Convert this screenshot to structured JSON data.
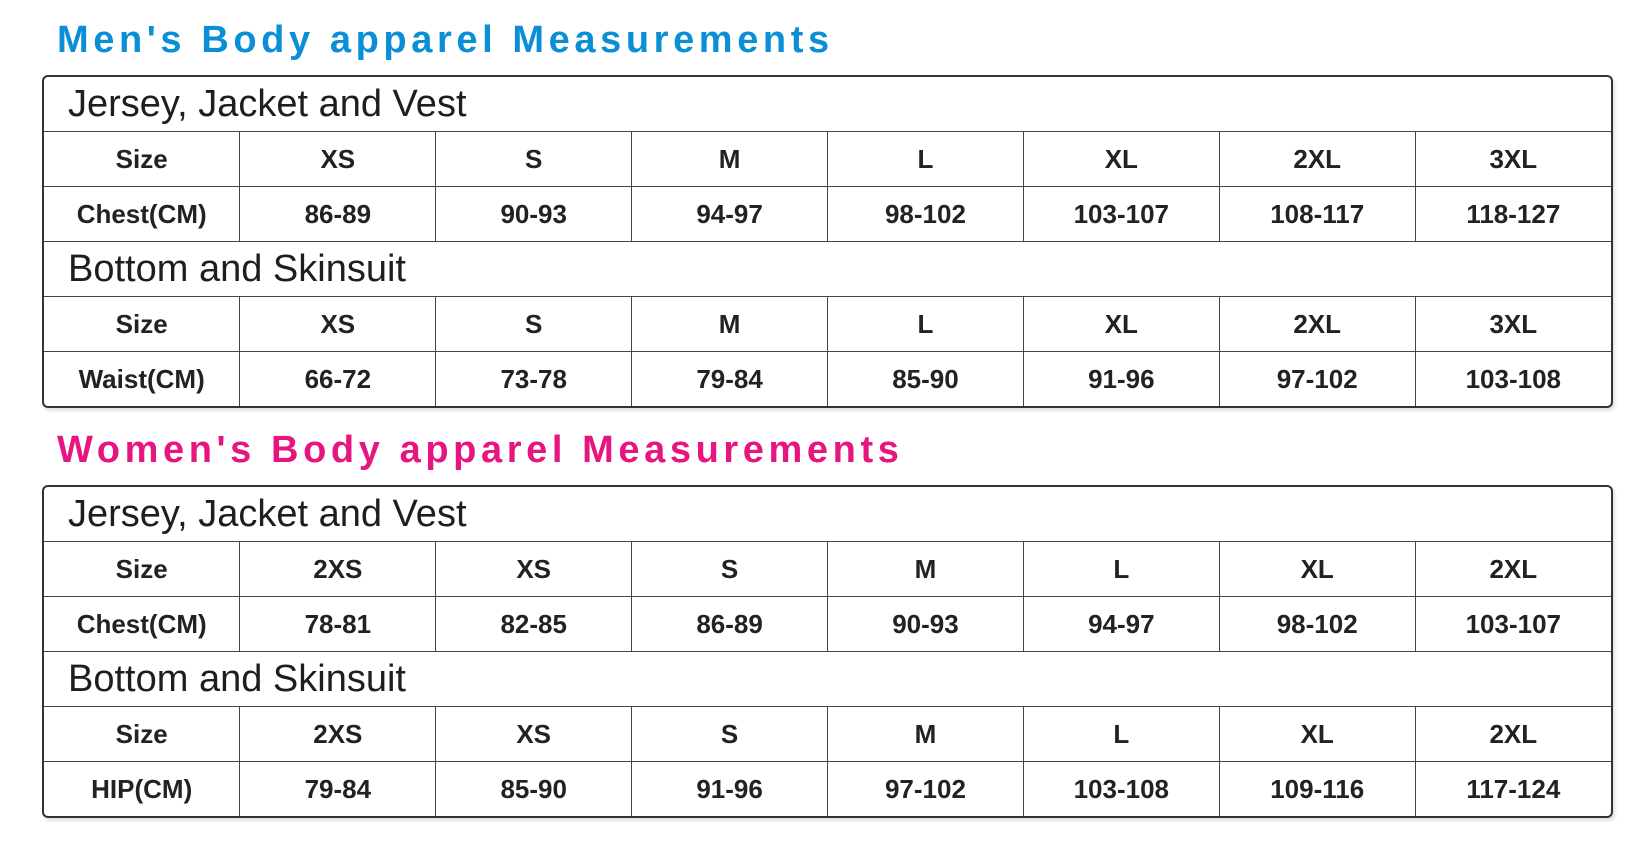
{
  "colors": {
    "men_title": "#0a8fd6",
    "women_title": "#e6157f",
    "border": "#333333"
  },
  "men": {
    "title": "Men's Body apparel Measurements",
    "sections": [
      {
        "heading": "Jersey, Jacket and Vest",
        "size_label": "Size",
        "sizes": [
          "XS",
          "S",
          "M",
          "L",
          "XL",
          "2XL",
          "3XL"
        ],
        "measure_label": "Chest(CM)",
        "values": [
          "86-89",
          "90-93",
          "94-97",
          "98-102",
          "103-107",
          "108-117",
          "118-127"
        ]
      },
      {
        "heading": "Bottom and Skinsuit",
        "size_label": "Size",
        "sizes": [
          "XS",
          "S",
          "M",
          "L",
          "XL",
          "2XL",
          "3XL"
        ],
        "measure_label": "Waist(CM)",
        "values": [
          "66-72",
          "73-78",
          "79-84",
          "85-90",
          "91-96",
          "97-102",
          "103-108"
        ]
      }
    ]
  },
  "women": {
    "title": "Women's Body apparel Measurements",
    "sections": [
      {
        "heading": "Jersey, Jacket and Vest",
        "size_label": "Size",
        "sizes": [
          "2XS",
          "XS",
          "S",
          "M",
          "L",
          "XL",
          "2XL"
        ],
        "measure_label": "Chest(CM)",
        "values": [
          "78-81",
          "82-85",
          "86-89",
          "90-93",
          "94-97",
          "98-102",
          "103-107"
        ]
      },
      {
        "heading": "Bottom and Skinsuit",
        "size_label": "Size",
        "sizes": [
          "2XS",
          "XS",
          "S",
          "M",
          "L",
          "XL",
          "2XL"
        ],
        "measure_label": "HIP(CM)",
        "values": [
          "79-84",
          "85-90",
          "91-96",
          "97-102",
          "103-108",
          "109-116",
          "117-124"
        ]
      }
    ]
  }
}
